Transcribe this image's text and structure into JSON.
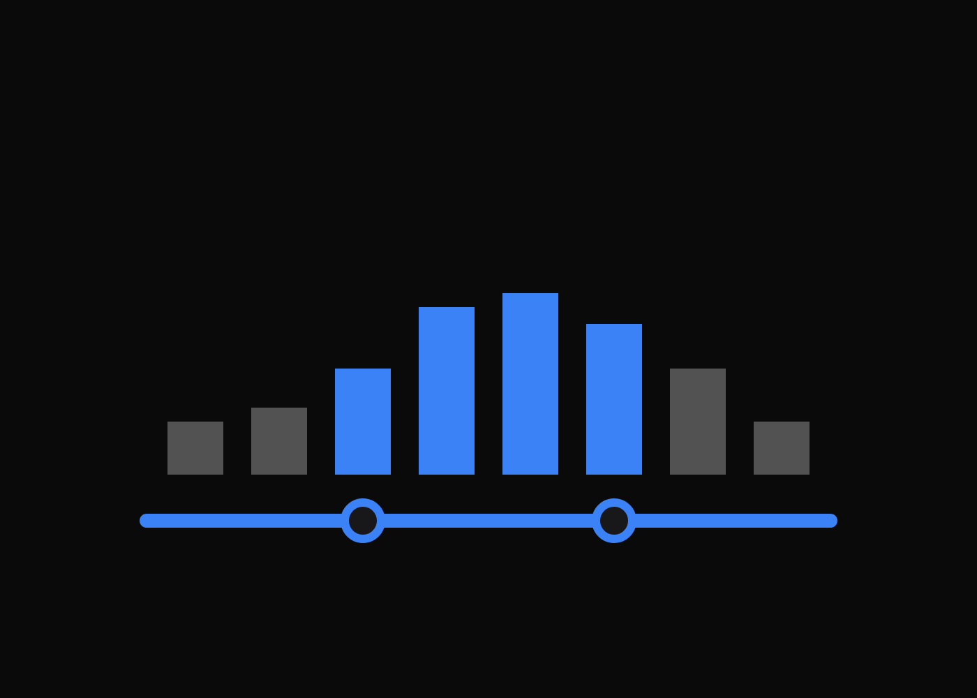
{
  "colors": {
    "background": "#0a0a0b",
    "accent": "#3b82f6",
    "inactive_bar": "#525252",
    "thumb_fill": "#18181b"
  },
  "histogram": {
    "bin_count": 8,
    "values": [
      38,
      48,
      76,
      120,
      130,
      108,
      76,
      38
    ],
    "max_value": 130
  },
  "range_slider": {
    "min_bin": 0,
    "max_bin": 8,
    "selected_start_bin": 2,
    "selected_end_bin": 5,
    "lower_value_fraction": 0.32,
    "upper_value_fraction": 0.68
  }
}
